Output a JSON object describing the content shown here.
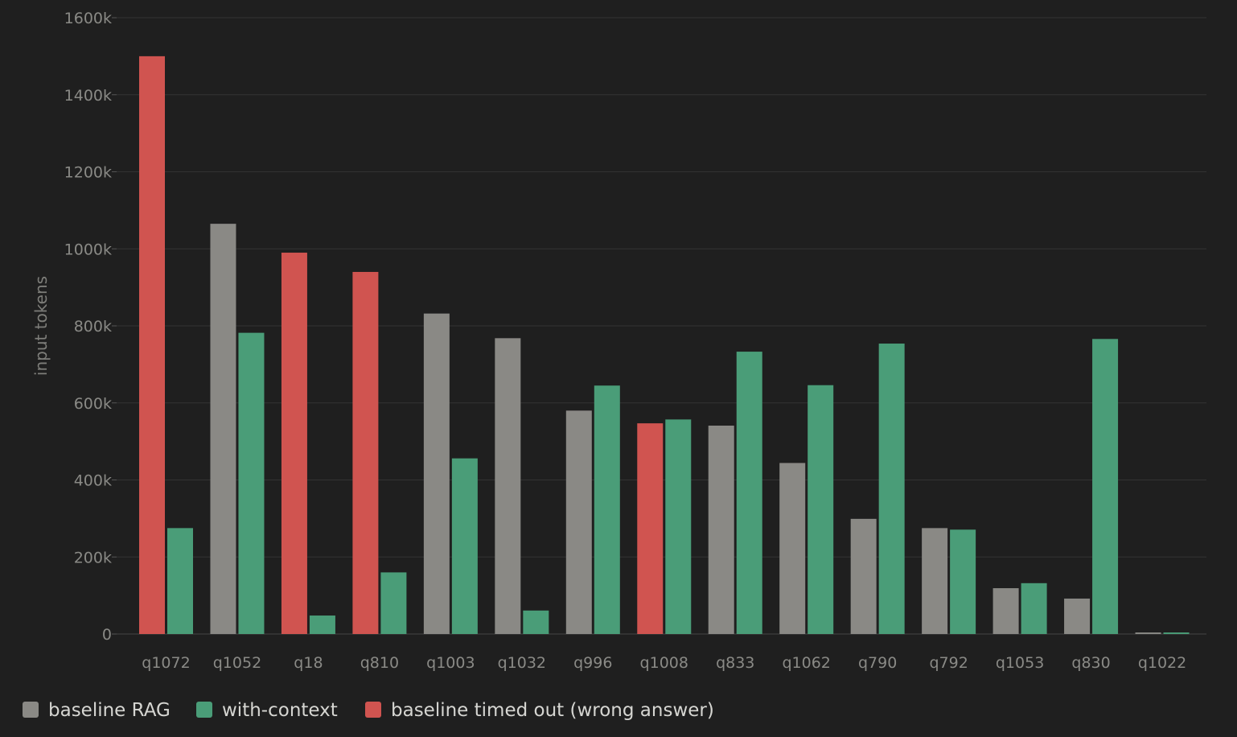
{
  "chart_data": {
    "type": "bar",
    "title": "",
    "xlabel": "",
    "ylabel": "input tokens",
    "ylim": [
      0,
      1600000
    ],
    "yticks": [
      0,
      200000,
      400000,
      600000,
      800000,
      1000000,
      1200000,
      1400000,
      1600000
    ],
    "ytick_labels": [
      "0",
      "200k",
      "400k",
      "600k",
      "800k",
      "1000k",
      "1200k",
      "1400k",
      "1600k"
    ],
    "grid": true,
    "legend_position": "bottom-left",
    "categories": [
      "q1072",
      "q1052",
      "q18",
      "q810",
      "q1003",
      "q1032",
      "q996",
      "q1008",
      "q833",
      "q1062",
      "q790",
      "q792",
      "q1053",
      "q830",
      "q1022"
    ],
    "series": [
      {
        "name": "baseline RAG",
        "color": "#8a8985",
        "values": [
          1500000,
          1065000,
          990000,
          940000,
          832000,
          768000,
          580000,
          547000,
          541000,
          444000,
          299000,
          275000,
          119000,
          92000,
          4000
        ],
        "timed_out": [
          true,
          false,
          true,
          true,
          false,
          false,
          false,
          true,
          false,
          false,
          false,
          false,
          false,
          false,
          false
        ]
      },
      {
        "name": "with-context",
        "color": "#4a9d78",
        "values": [
          275000,
          782000,
          48000,
          160000,
          456000,
          61000,
          645000,
          557000,
          733000,
          646000,
          754000,
          271000,
          132000,
          766000,
          4000
        ]
      }
    ],
    "timed_out_color": "#d05450",
    "legend": [
      {
        "label": "baseline RAG",
        "color": "#8a8985"
      },
      {
        "label": "with-context",
        "color": "#4a9d78"
      },
      {
        "label": "baseline timed out (wrong answer)",
        "color": "#d05450"
      }
    ]
  }
}
